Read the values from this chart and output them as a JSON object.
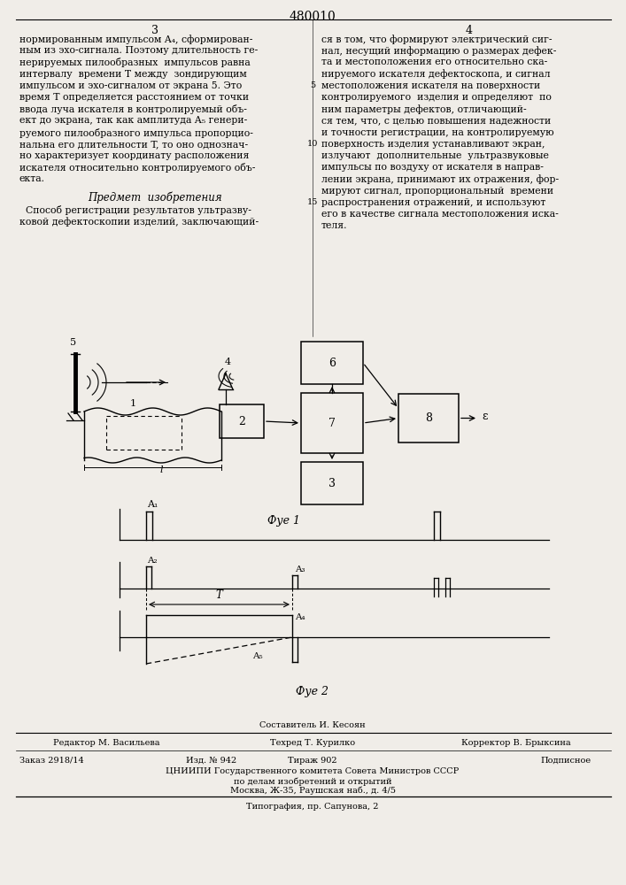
{
  "patent_number": "480010",
  "page_col_left": "3",
  "page_col_right": "4",
  "line_number_5": "5",
  "line_number_10": "10",
  "line_number_15": "15",
  "text_left_col": [
    "нормированным импульсом A₄, сформирован-",
    "ным из эхо-сигнала. Поэтому длительность ге-",
    "нерируемых пилообразных  импульсов равна",
    "интервалу  времени T между  зондирующим",
    "импульсом и эхо-сигналом от экрана 5. Это",
    "время T определяется расстоянием от точки",
    "ввода луча искателя в контролируемый объ-",
    "ект до экрана, так как амплитуда A₅ генери-",
    "руемого пилообразного импульса пропорцио-",
    "нальна его длительности T, то оно однознач-",
    "но характеризует координату расположения",
    "искателя относительно контролируемого объ-",
    "екта."
  ],
  "predmet_header": "Предмет  изобретения",
  "predmet_text": [
    "  Способ регистрации результатов ультразву-",
    "ковой дефектоскопии изделий, заключающий-"
  ],
  "text_right_col": [
    "ся в том, что формируют электрический сиг-",
    "нал, несущий информацию о размерах дефек-",
    "та и местоположения его относительно ска-",
    "нируемого искателя дефектоскопа, и сигнал",
    "местоположения искателя на поверхности",
    "контролируемого  изделия и определяют  по",
    "ним параметры дефектов, отличающий-",
    "ся тем, что, с целью повышения надежности",
    "и точности регистрации, на контролируемую",
    "поверхность изделия устанавливают экран,",
    "излучают  дополнительные  ультразвуковые",
    "импульсы по воздуху от искателя в направ-",
    "лении экрана, принимают их отражения, фор-",
    "мируют сигнал, пропорциональный  времени",
    "распространения отражений, и используют",
    "его в качестве сигнала местоположения иска-",
    "теля."
  ],
  "footer_sestavitel": "Составитель И. Кесоян",
  "footer_line1_left": "Редактор М. Васильева",
  "footer_line1_mid": "Техред Т. Курилко",
  "footer_line1_right": "Корректор В. Брыксина",
  "footer_line2_1": "Заказ 2918/14",
  "footer_line2_2": "Изд. № 942",
  "footer_line2_3": "Тираж 902",
  "footer_line2_4": "Подписное",
  "footer_line3": "ЦНИИПИ Государственного комитета Совета Министров СССР",
  "footer_line4": "по делам изобретений и открытий",
  "footer_line5": "Москва, Ж-35, Раушская наб., д. 4/5",
  "footer_line6": "Типография, пр. Сапунова, 2",
  "fig1_label": "Фуе 1",
  "fig2_label": "Фуе 2",
  "bg_color": "#f0ede8"
}
